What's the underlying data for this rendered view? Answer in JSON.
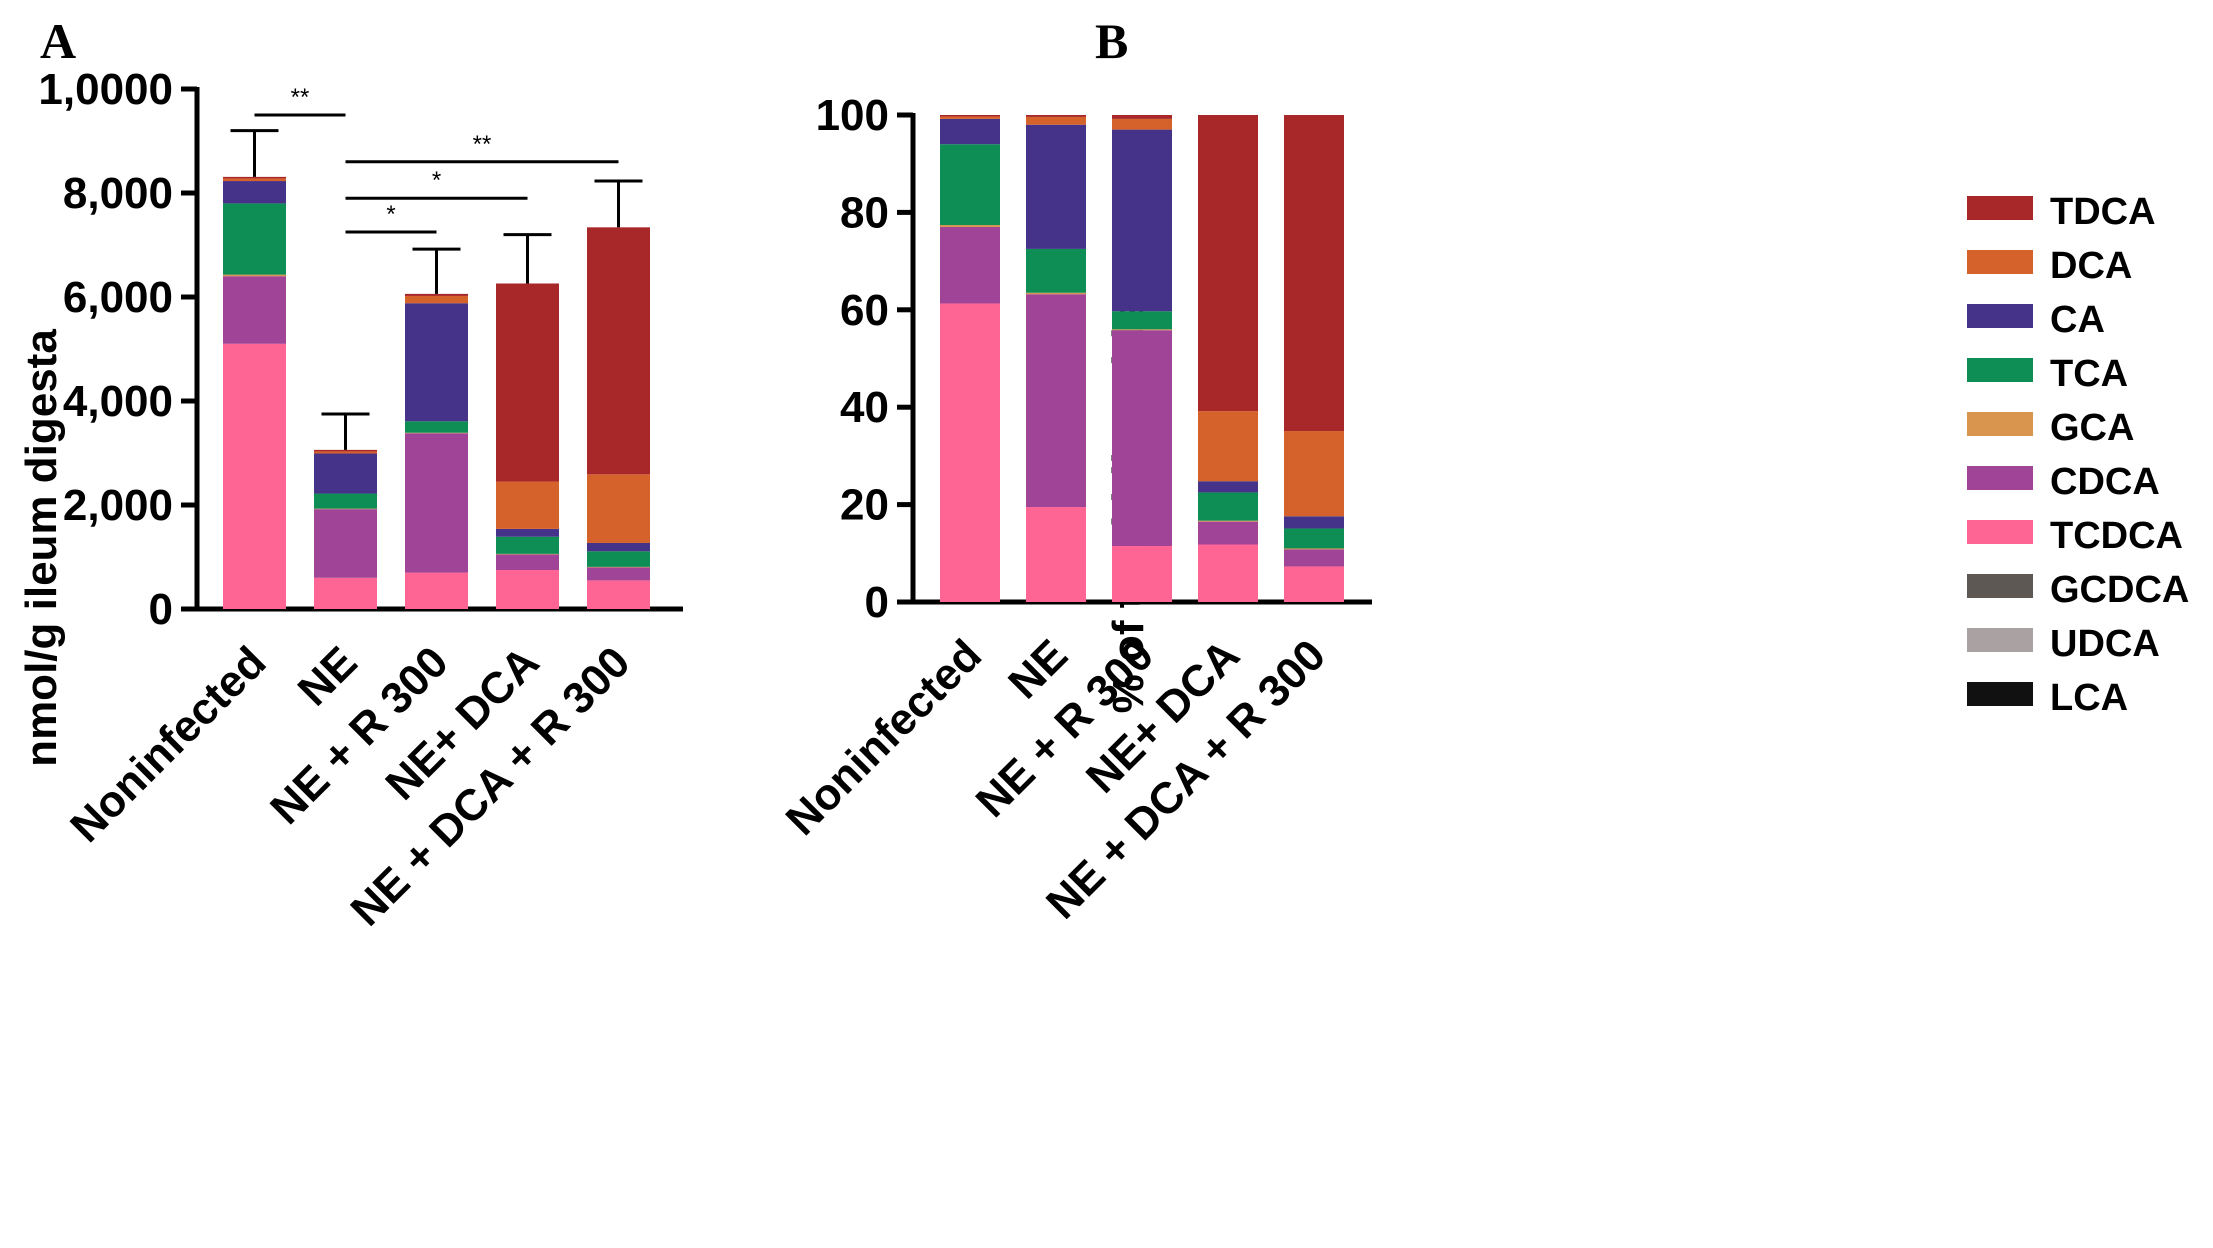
{
  "legend": [
    {
      "name": "TDCA",
      "color": "#a8282a"
    },
    {
      "name": "DCA",
      "color": "#d4622a"
    },
    {
      "name": "CA",
      "color": "#45338a"
    },
    {
      "name": "TCA",
      "color": "#0e8e55"
    },
    {
      "name": "GCA",
      "color": "#d9944e"
    },
    {
      "name": "CDCA",
      "color": "#9f4497"
    },
    {
      "name": "TCDCA",
      "color": "#ff6594"
    },
    {
      "name": "GCDCA",
      "color": "#5e5855"
    },
    {
      "name": "UDCA",
      "color": "#aaa2a2"
    },
    {
      "name": "LCA",
      "color": "#111111"
    }
  ],
  "chart_data": [
    {
      "panel": "A",
      "type": "bar",
      "stacked": true,
      "ylabel": "nmol/g ileum digesta",
      "ylim": [
        0,
        10000
      ],
      "yticks": [
        0,
        2000,
        4000,
        6000,
        8000,
        10000
      ],
      "ytick_labels": [
        "0",
        "2,000",
        "4,000",
        "6,000",
        "8,000",
        "1,0000"
      ],
      "categories": [
        "Noninfected",
        "NE",
        "NE + R 300",
        "NE+ DCA",
        "NE + DCA + R 300"
      ],
      "series": [
        {
          "name": "TCDCA",
          "values": [
            5100,
            600,
            700,
            750,
            550
          ]
        },
        {
          "name": "CDCA",
          "values": [
            1300,
            1320,
            2680,
            300,
            250
          ]
        },
        {
          "name": "GCA",
          "values": [
            30,
            10,
            10,
            10,
            10
          ]
        },
        {
          "name": "TCA",
          "values": [
            1370,
            290,
            220,
            330,
            300
          ]
        },
        {
          "name": "CA",
          "values": [
            430,
            770,
            2270,
            150,
            160
          ]
        },
        {
          "name": "DCA",
          "values": [
            50,
            40,
            140,
            910,
            1320
          ]
        },
        {
          "name": "TDCA",
          "values": [
            30,
            30,
            40,
            3810,
            4750
          ]
        }
      ],
      "error_tops": [
        9200,
        3750,
        6920,
        7200,
        8230
      ],
      "significance": [
        {
          "from": 0,
          "to": 1,
          "label": "**",
          "y": 9500
        },
        {
          "from": 1,
          "to": 4,
          "label": "**",
          "y": 8600
        },
        {
          "from": 1,
          "to": 3,
          "label": "*",
          "y": 7900
        },
        {
          "from": 1,
          "to": 2,
          "label": "*",
          "y": 7250
        }
      ]
    },
    {
      "panel": "B",
      "type": "bar",
      "stacked": true,
      "ylabel": "% of total bile acids",
      "ylim": [
        0,
        100
      ],
      "yticks": [
        0,
        20,
        40,
        60,
        80,
        100
      ],
      "ytick_labels": [
        "0",
        "20",
        "40",
        "60",
        "80",
        "100"
      ],
      "categories": [
        "Noninfected",
        "NE",
        "NE + R 300",
        "NE+ DCA",
        "NE + DCA + R 300"
      ],
      "series": [
        {
          "name": "TCDCA",
          "values": [
            61.3,
            19.5,
            11.5,
            11.8,
            7.3
          ]
        },
        {
          "name": "CDCA",
          "values": [
            15.7,
            43.7,
            44.3,
            4.7,
            3.5
          ]
        },
        {
          "name": "GCA",
          "values": [
            0.4,
            0.3,
            0.2,
            0.2,
            0.2
          ]
        },
        {
          "name": "TCA",
          "values": [
            16.6,
            9.0,
            3.7,
            5.8,
            4.1
          ]
        },
        {
          "name": "CA",
          "values": [
            5.2,
            25.5,
            37.3,
            2.3,
            2.5
          ]
        },
        {
          "name": "DCA",
          "values": [
            0.5,
            1.6,
            2.2,
            14.4,
            17.5
          ]
        },
        {
          "name": "TDCA",
          "values": [
            0.3,
            0.4,
            0.8,
            60.8,
            64.9
          ]
        }
      ]
    }
  ]
}
